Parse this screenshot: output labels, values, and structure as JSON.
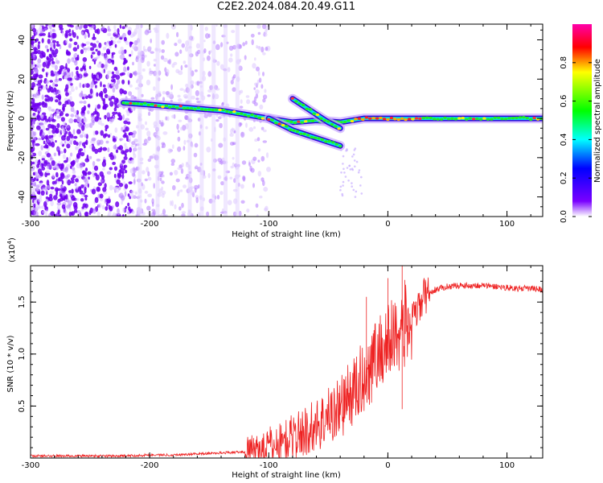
{
  "page": {
    "title": "C2E2.2024.084.20.49.G11"
  },
  "colors": {
    "snr_line": "#ee2222",
    "axis": "#000000",
    "background": "#ffffff"
  },
  "chart_data": [
    {
      "type": "heatmap",
      "xlabel": "Height of straight line (km)",
      "ylabel": "Frequency (Hz)",
      "xlim": [
        -300,
        130
      ],
      "ylim": [
        -50,
        48
      ],
      "x_ticks": [
        -300,
        -200,
        -100,
        0,
        100
      ],
      "x_tick_labels": [
        "-300",
        "-200",
        "-100",
        "0",
        "100"
      ],
      "y_ticks": [
        -40,
        -20,
        0,
        20,
        40
      ],
      "y_tick_labels": [
        "-40",
        "-20",
        "0",
        "20",
        "40"
      ],
      "colorbar": {
        "label": "Normalized spectral amplitude",
        "range": [
          0,
          1
        ],
        "ticks": [
          0.0,
          0.2,
          0.4,
          0.6,
          0.8
        ],
        "tick_labels": [
          "0.0",
          "0.2",
          "0.4",
          "0.6",
          "0.8"
        ],
        "colormap": [
          "#ffffff",
          "#7a00ff",
          "#0000ff",
          "#00ffff",
          "#00ff00",
          "#ffff00",
          "#ff0000",
          "#ff00aa"
        ]
      },
      "ridges": [
        {
          "x": [
            -222,
            -200,
            -180,
            -160,
            -140,
            -120,
            -100,
            -80,
            -60,
            -40,
            -20,
            0,
            20,
            60,
            100,
            130
          ],
          "y": [
            8,
            7,
            6,
            5,
            4,
            2,
            0,
            -2,
            -1,
            -2,
            0,
            0,
            0,
            0,
            0,
            0
          ]
        },
        {
          "x": [
            -80,
            -70,
            -60,
            -50,
            -40
          ],
          "y": [
            10,
            6,
            2,
            -2,
            -5
          ]
        },
        {
          "x": [
            -100,
            -90,
            -80,
            -70,
            -60,
            -50,
            -40
          ],
          "y": [
            0,
            -3,
            -6,
            -8,
            -10,
            -12,
            -14
          ]
        }
      ],
      "grid": false
    },
    {
      "type": "line",
      "xlabel": "Height of straight line (km)",
      "ylabel": "SNR (10 * v/v)",
      "multiplier": "(x10",
      "multiplier_exp": "4",
      "xlim": [
        -300,
        130
      ],
      "ylim": [
        0,
        1.85
      ],
      "x_ticks": [
        -300,
        -200,
        -100,
        0,
        100
      ],
      "x_tick_labels": [
        "-300",
        "-200",
        "-100",
        "0",
        "100"
      ],
      "y_ticks": [
        0.5,
        1.0,
        1.5
      ],
      "y_tick_labels": [
        "0.5",
        "1.0",
        "1.5"
      ],
      "series": [
        {
          "x": [
            -300,
            -280,
            -260,
            -240,
            -220,
            -200,
            -180,
            -160,
            -140,
            -120,
            -110,
            -100,
            -90,
            -80,
            -70,
            -60,
            -50,
            -40,
            -30,
            -20,
            -15,
            -10,
            -5,
            0,
            5,
            10,
            15,
            20,
            25,
            30,
            40,
            50,
            60,
            70,
            80,
            90,
            100,
            110,
            120,
            130
          ],
          "values": [
            0.02,
            0.02,
            0.02,
            0.02,
            0.02,
            0.03,
            0.03,
            0.04,
            0.05,
            0.06,
            0.08,
            0.12,
            0.15,
            0.2,
            0.25,
            0.32,
            0.4,
            0.5,
            0.62,
            0.78,
            0.88,
            0.98,
            1.05,
            1.1,
            1.18,
            1.25,
            1.28,
            1.3,
            1.42,
            1.55,
            1.62,
            1.65,
            1.66,
            1.66,
            1.66,
            1.65,
            1.64,
            1.63,
            1.63,
            1.62
          ]
        }
      ],
      "grid": false
    }
  ]
}
